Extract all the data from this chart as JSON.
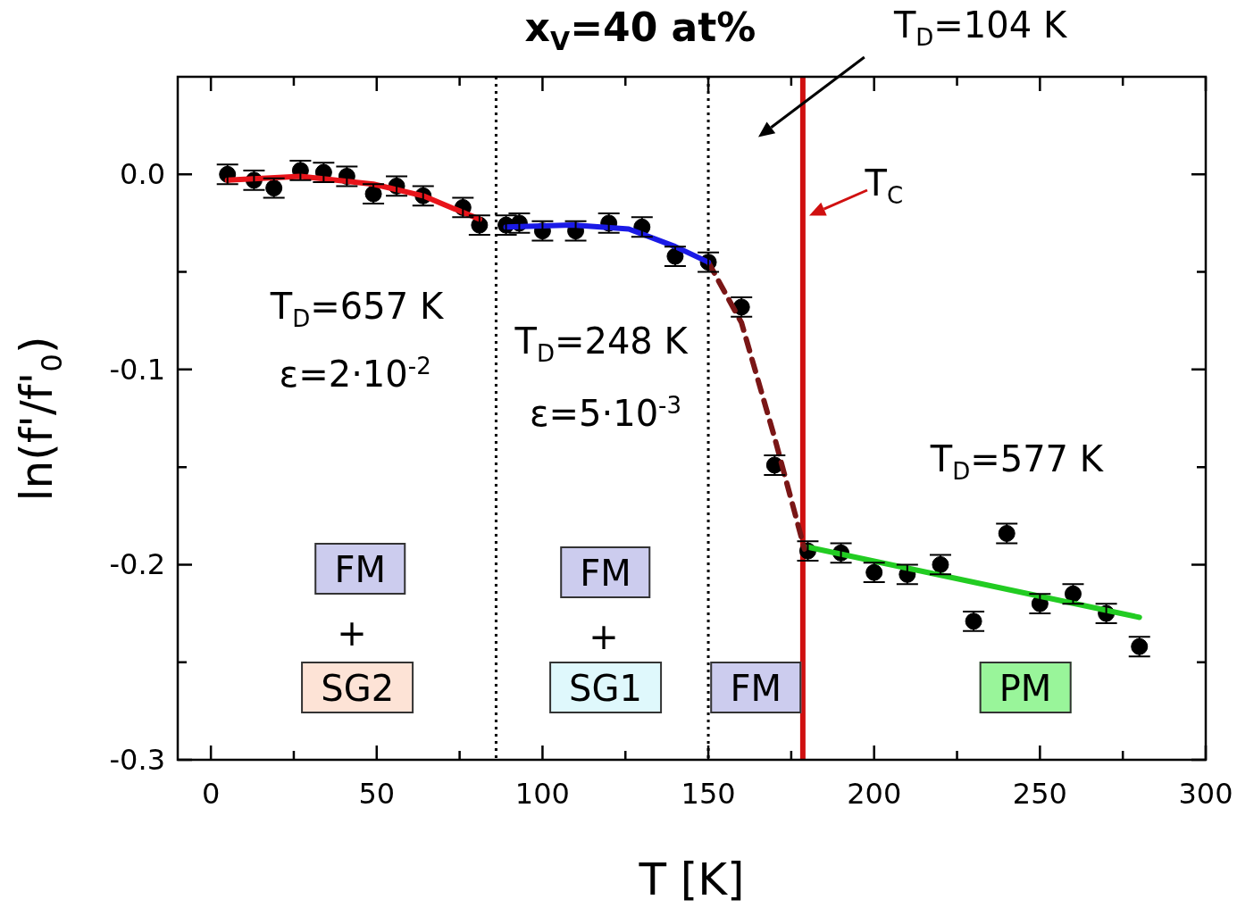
{
  "chart_data": {
    "type": "scatter",
    "title": "x$_{V}$=40 at%",
    "xlabel": "T [K]",
    "ylabel": "ln(f'/f'$_{0}$)",
    "xlim": [
      -10,
      300
    ],
    "xticks": [
      0,
      {
        "value": 25,
        "label": null
      },
      50,
      {
        "value": 75,
        "label": null
      },
      100,
      {
        "value": 125,
        "label": null
      },
      150,
      {
        "value": 175,
        "label": null
      },
      200,
      {
        "value": 225,
        "label": null
      },
      250,
      {
        "value": 275,
        "label": null
      },
      300
    ],
    "ylim": [
      -0.3,
      0.05
    ],
    "yticks": [
      {
        "value": -0.3,
        "label": "-0.3"
      },
      {
        "value": -0.25,
        "label": null
      },
      {
        "value": -0.2,
        "label": "-0.2"
      },
      {
        "value": -0.15,
        "label": null
      },
      {
        "value": -0.1,
        "label": "-0.1"
      },
      {
        "value": -0.05,
        "label": null
      },
      {
        "value": 0,
        "label": "0.0"
      }
    ],
    "grid": false,
    "legend": false,
    "series": [
      {
        "type": "scatter",
        "color": "#000000",
        "marker": "circle",
        "x": [
          5,
          13,
          19,
          27,
          34,
          41,
          49,
          56,
          64,
          76,
          81,
          89,
          93,
          100,
          110,
          120,
          130,
          140,
          150,
          160,
          170,
          180,
          190,
          200,
          210,
          220,
          230,
          240,
          250,
          260,
          270,
          280
        ],
        "values": [
          0.0,
          -0.003,
          -0.007,
          0.002,
          0.001,
          -0.001,
          -0.01,
          -0.006,
          -0.011,
          -0.017,
          -0.026,
          -0.026,
          -0.025,
          -0.029,
          -0.029,
          -0.025,
          -0.027,
          -0.042,
          -0.045,
          -0.068,
          -0.149,
          -0.193,
          -0.194,
          -0.204,
          -0.205,
          -0.2,
          -0.229,
          -0.184,
          -0.22,
          -0.215,
          -0.225,
          -0.242
        ],
        "errors": [
          0.005,
          0.005,
          0.005,
          0.005,
          0.005,
          0.005,
          0.005,
          0.005,
          0.005,
          0.005,
          0.005,
          0.005,
          0.005,
          0.005,
          0.005,
          0.005,
          0.005,
          0.005,
          0.005,
          0.005,
          0.005,
          0.005,
          0.005,
          0.005,
          0.005,
          0.005,
          0.005,
          0.005,
          0.005,
          0.005,
          0.005,
          0.005
        ]
      },
      {
        "type": "line",
        "color": "#e8141a",
        "line_style": "solid",
        "x": [
          5,
          27,
          49,
          64,
          81
        ],
        "values": [
          -0.003,
          -0.001,
          -0.005,
          -0.011,
          -0.023
        ]
      },
      {
        "type": "line",
        "color": "#1a1ae6",
        "line_style": "solid",
        "x": [
          89,
          109,
          126,
          140,
          150
        ],
        "values": [
          -0.027,
          -0.026,
          -0.028,
          -0.037,
          -0.045
        ]
      },
      {
        "type": "line",
        "color": "#7a1616",
        "line_style": "dashed",
        "x": [
          150,
          160,
          170,
          179
        ],
        "values": [
          -0.045,
          -0.076,
          -0.135,
          -0.192
        ]
      },
      {
        "type": "line",
        "color": "#22cc22",
        "line_style": "solid",
        "x": [
          180,
          280
        ],
        "values": [
          -0.191,
          -0.227
        ]
      }
    ],
    "ref_lines": [
      {
        "axis": "x",
        "value": 86,
        "line_style": "dotted",
        "color": "#000000"
      },
      {
        "axis": "x",
        "value": 150,
        "line_style": "dotted",
        "color": "#000000"
      },
      {
        "axis": "x",
        "value": 178.5,
        "line_style": "solid",
        "color": "#d01010",
        "label": "T$_{C}$"
      }
    ],
    "annotations": [
      "T$_{D}$=104 K",
      "T$_{D}$=657 K",
      "ε=2·10$^{-2}$",
      "T$_{D}$=248 K",
      "ε=5·10$^{-3}$",
      "T$_{D}$=577 K",
      "FM",
      "+",
      "SG2",
      "FM",
      "+",
      "SG1",
      "FM",
      "PM"
    ]
  }
}
